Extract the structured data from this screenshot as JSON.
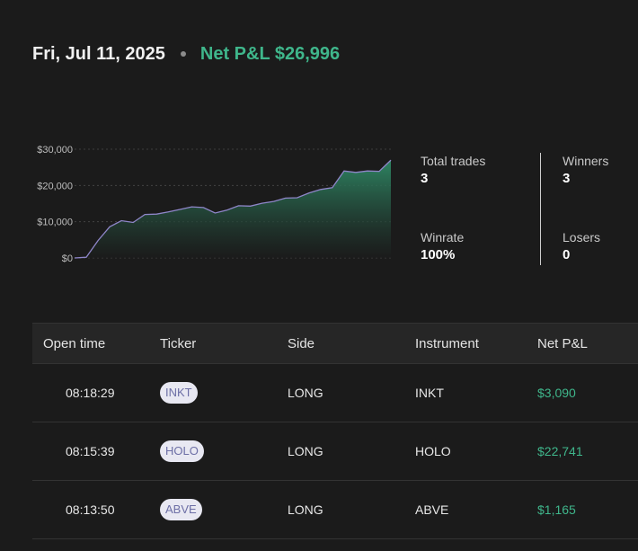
{
  "header": {
    "date": "Fri, Jul 11, 2025",
    "net_pnl": "Net P&L $26,996"
  },
  "colors": {
    "background": "#1b1b1b",
    "profit_green": "#3fb68b",
    "chart_line": "#8f86c9",
    "area_top": "#2f8a66"
  },
  "chart_data": {
    "type": "area",
    "y_tick_labels": [
      "$30,000",
      "$20,000",
      "$10,000",
      "$0"
    ],
    "y_ticks": [
      30000,
      20000,
      10000,
      0
    ],
    "ylim": [
      0,
      30000
    ],
    "grid": true,
    "values": [
      0,
      200,
      4800,
      8600,
      10300,
      9800,
      12000,
      12100,
      12700,
      13400,
      14100,
      13900,
      12400,
      13200,
      14400,
      14300,
      15100,
      15600,
      16500,
      16600,
      17900,
      18900,
      19400,
      24000,
      23600,
      24000,
      23900,
      26996
    ]
  },
  "stats": {
    "total_trades_label": "Total trades",
    "total_trades_value": "3",
    "winners_label": "Winners",
    "winners_value": "3",
    "winrate_label": "Winrate",
    "winrate_value": "100%",
    "losers_label": "Losers",
    "losers_value": "0"
  },
  "table": {
    "headers": [
      "Open time",
      "Ticker",
      "Side",
      "Instrument",
      "Net P&L"
    ],
    "rows": [
      {
        "time": "08:18:29",
        "ticker": "INKT",
        "side": "LONG",
        "instrument": "INKT",
        "pnl": "$3,090"
      },
      {
        "time": "08:15:39",
        "ticker": "HOLO",
        "side": "LONG",
        "instrument": "HOLO",
        "pnl": "$22,741"
      },
      {
        "time": "08:13:50",
        "ticker": "ABVE",
        "side": "LONG",
        "instrument": "ABVE",
        "pnl": "$1,165"
      }
    ]
  }
}
